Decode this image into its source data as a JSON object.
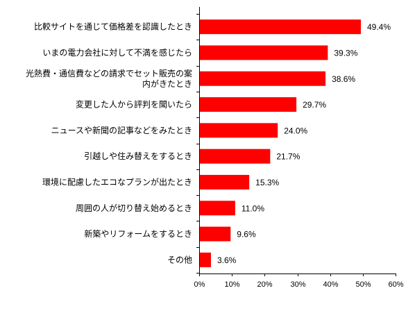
{
  "chart_data": {
    "type": "bar",
    "orientation": "horizontal",
    "categories": [
      [
        "比較サイトを通じて価格差を認識したとき"
      ],
      [
        "いまの電力会社に対して不満を感じたら"
      ],
      [
        "光熱費・通信費などの請求でセット販売の案",
        "内がきたとき"
      ],
      [
        "変更した人から評判を聞いたら"
      ],
      [
        "ニュースや新聞の記事などをみたとき"
      ],
      [
        "引越しや住み替えをするとき"
      ],
      [
        "環境に配慮したエコなプランが出たとき"
      ],
      [
        "周囲の人が切り替え始めるとき"
      ],
      [
        "新築やリフォームをするとき"
      ],
      [
        "その他"
      ]
    ],
    "values": [
      49.4,
      39.3,
      38.6,
      29.7,
      24.0,
      21.7,
      15.3,
      11.0,
      9.6,
      3.6
    ],
    "value_labels": [
      "49.4%",
      "39.3%",
      "38.6%",
      "29.7%",
      "24.0%",
      "21.7%",
      "15.3%",
      "11.0%",
      "9.6%",
      "3.6%"
    ],
    "xlim": [
      0,
      60
    ],
    "xticks": [
      "0%",
      "10%",
      "20%",
      "30%",
      "40%",
      "50%",
      "60%"
    ],
    "bar_color": "#ff0000",
    "grid": false,
    "legend": "none",
    "title": "",
    "xlabel": "",
    "ylabel": ""
  }
}
